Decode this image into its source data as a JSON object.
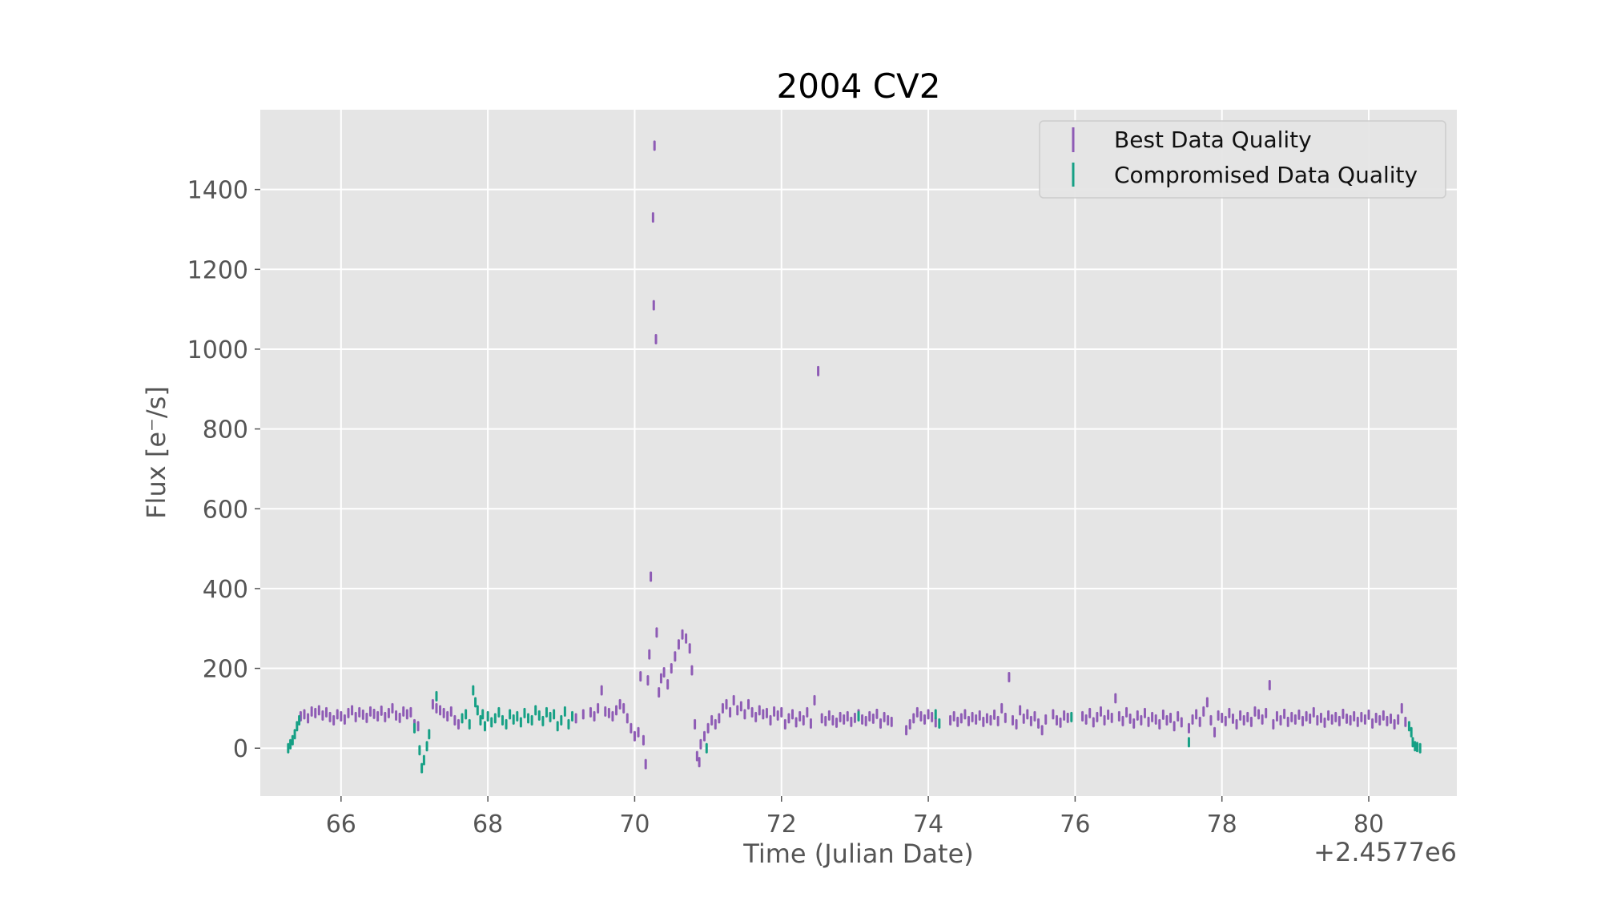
{
  "chart_data": {
    "type": "scatter",
    "title": "2004 CV2",
    "xlabel": "Time (Julian Date)",
    "ylabel": "Flux [e⁻/s]",
    "x_offset_label": "+2.4577e6",
    "xlim": [
      64.9,
      81.2
    ],
    "ylim": [
      -120,
      1600
    ],
    "x_ticks": [
      66,
      68,
      70,
      72,
      74,
      76,
      78,
      80
    ],
    "x_tick_labels": [
      "66",
      "68",
      "70",
      "72",
      "74",
      "76",
      "78",
      "80"
    ],
    "y_ticks": [
      0,
      200,
      400,
      600,
      800,
      1000,
      1200,
      1400
    ],
    "y_tick_labels": [
      "0",
      "200",
      "400",
      "600",
      "800",
      "1000",
      "1200",
      "1400"
    ],
    "grid": true,
    "legend_position": "top-right",
    "background": "#e5e5e5",
    "series": [
      {
        "name": "Best Data Quality",
        "color": "#8e5bb5",
        "points": [
          [
            65.45,
            80
          ],
          [
            65.5,
            85
          ],
          [
            65.55,
            75
          ],
          [
            65.6,
            92
          ],
          [
            65.65,
            88
          ],
          [
            65.7,
            95
          ],
          [
            65.75,
            82
          ],
          [
            65.8,
            90
          ],
          [
            65.85,
            78
          ],
          [
            65.9,
            70
          ],
          [
            65.95,
            85
          ],
          [
            66.0,
            80
          ],
          [
            66.05,
            72
          ],
          [
            66.1,
            88
          ],
          [
            66.15,
            95
          ],
          [
            66.2,
            78
          ],
          [
            66.25,
            90
          ],
          [
            66.3,
            84
          ],
          [
            66.35,
            76
          ],
          [
            66.4,
            92
          ],
          [
            66.45,
            86
          ],
          [
            66.5,
            80
          ],
          [
            66.55,
            94
          ],
          [
            66.6,
            78
          ],
          [
            66.65,
            88
          ],
          [
            66.7,
            100
          ],
          [
            66.75,
            82
          ],
          [
            66.8,
            76
          ],
          [
            66.85,
            92
          ],
          [
            66.9,
            85
          ],
          [
            66.95,
            90
          ],
          [
            67.0,
            60
          ],
          [
            67.05,
            55
          ],
          [
            67.25,
            110
          ],
          [
            67.3,
            100
          ],
          [
            67.35,
            95
          ],
          [
            67.4,
            88
          ],
          [
            67.45,
            80
          ],
          [
            67.5,
            92
          ],
          [
            67.55,
            70
          ],
          [
            67.6,
            60
          ],
          [
            69.2,
            75
          ],
          [
            69.3,
            85
          ],
          [
            69.4,
            90
          ],
          [
            69.45,
            80
          ],
          [
            69.5,
            100
          ],
          [
            69.55,
            145
          ],
          [
            69.6,
            92
          ],
          [
            69.65,
            88
          ],
          [
            69.7,
            80
          ],
          [
            69.75,
            95
          ],
          [
            69.8,
            110
          ],
          [
            69.85,
            100
          ],
          [
            69.9,
            75
          ],
          [
            69.95,
            50
          ],
          [
            70.0,
            30
          ],
          [
            70.05,
            40
          ],
          [
            70.08,
            180
          ],
          [
            70.12,
            20
          ],
          [
            70.15,
            -40
          ],
          [
            70.18,
            170
          ],
          [
            70.2,
            235
          ],
          [
            70.22,
            430
          ],
          [
            70.25,
            1330
          ],
          [
            70.26,
            1110
          ],
          [
            70.27,
            1510
          ],
          [
            70.29,
            1025
          ],
          [
            70.3,
            290
          ],
          [
            70.33,
            140
          ],
          [
            70.36,
            175
          ],
          [
            70.4,
            190
          ],
          [
            70.45,
            160
          ],
          [
            70.5,
            200
          ],
          [
            70.55,
            230
          ],
          [
            70.6,
            260
          ],
          [
            70.65,
            285
          ],
          [
            70.7,
            275
          ],
          [
            70.75,
            250
          ],
          [
            70.78,
            195
          ],
          [
            70.82,
            60
          ],
          [
            70.85,
            -20
          ],
          [
            70.88,
            -35
          ],
          [
            70.9,
            10
          ],
          [
            70.95,
            30
          ],
          [
            71.0,
            50
          ],
          [
            71.05,
            70
          ],
          [
            71.1,
            60
          ],
          [
            71.15,
            75
          ],
          [
            71.2,
            100
          ],
          [
            71.25,
            110
          ],
          [
            71.3,
            90
          ],
          [
            71.35,
            120
          ],
          [
            71.4,
            95
          ],
          [
            71.45,
            105
          ],
          [
            71.5,
            85
          ],
          [
            71.55,
            110
          ],
          [
            71.6,
            90
          ],
          [
            71.65,
            78
          ],
          [
            71.7,
            95
          ],
          [
            71.75,
            85
          ],
          [
            71.8,
            88
          ],
          [
            71.85,
            70
          ],
          [
            71.9,
            92
          ],
          [
            71.95,
            82
          ],
          [
            72.0,
            90
          ],
          [
            72.05,
            60
          ],
          [
            72.1,
            75
          ],
          [
            72.15,
            85
          ],
          [
            72.2,
            65
          ],
          [
            72.25,
            80
          ],
          [
            72.3,
            70
          ],
          [
            72.35,
            90
          ],
          [
            72.4,
            62
          ],
          [
            72.45,
            120
          ],
          [
            72.5,
            945
          ],
          [
            72.55,
            75
          ],
          [
            72.6,
            68
          ],
          [
            72.65,
            82
          ],
          [
            72.7,
            70
          ],
          [
            72.75,
            64
          ],
          [
            72.8,
            78
          ],
          [
            72.85,
            72
          ],
          [
            72.9,
            80
          ],
          [
            72.95,
            66
          ],
          [
            73.0,
            76
          ],
          [
            73.05,
            85
          ],
          [
            73.1,
            72
          ],
          [
            73.15,
            68
          ],
          [
            73.2,
            80
          ],
          [
            73.25,
            74
          ],
          [
            73.3,
            86
          ],
          [
            73.35,
            62
          ],
          [
            73.4,
            78
          ],
          [
            73.45,
            70
          ],
          [
            73.5,
            66
          ],
          [
            73.7,
            45
          ],
          [
            73.75,
            60
          ],
          [
            73.8,
            75
          ],
          [
            73.85,
            90
          ],
          [
            73.9,
            80
          ],
          [
            73.95,
            72
          ],
          [
            74.0,
            85
          ],
          [
            74.05,
            78
          ],
          [
            74.1,
            65
          ],
          [
            74.3,
            70
          ],
          [
            74.35,
            80
          ],
          [
            74.4,
            66
          ],
          [
            74.45,
            75
          ],
          [
            74.5,
            85
          ],
          [
            74.55,
            68
          ],
          [
            74.6,
            78
          ],
          [
            74.65,
            72
          ],
          [
            74.7,
            82
          ],
          [
            74.75,
            66
          ],
          [
            74.8,
            75
          ],
          [
            74.85,
            70
          ],
          [
            74.9,
            84
          ],
          [
            74.95,
            68
          ],
          [
            75.0,
            100
          ],
          [
            75.05,
            76
          ],
          [
            75.1,
            178
          ],
          [
            75.15,
            70
          ],
          [
            75.2,
            60
          ],
          [
            75.25,
            95
          ],
          [
            75.3,
            74
          ],
          [
            75.35,
            85
          ],
          [
            75.4,
            68
          ],
          [
            75.45,
            80
          ],
          [
            75.5,
            62
          ],
          [
            75.55,
            45
          ],
          [
            75.6,
            72
          ],
          [
            75.7,
            85
          ],
          [
            75.75,
            70
          ],
          [
            75.8,
            64
          ],
          [
            75.85,
            82
          ],
          [
            75.9,
            76
          ],
          [
            76.1,
            80
          ],
          [
            76.15,
            72
          ],
          [
            76.2,
            88
          ],
          [
            76.25,
            65
          ],
          [
            76.3,
            78
          ],
          [
            76.35,
            92
          ],
          [
            76.4,
            70
          ],
          [
            76.45,
            84
          ],
          [
            76.5,
            76
          ],
          [
            76.55,
            125
          ],
          [
            76.6,
            80
          ],
          [
            76.65,
            68
          ],
          [
            76.7,
            90
          ],
          [
            76.75,
            74
          ],
          [
            76.8,
            62
          ],
          [
            76.85,
            82
          ],
          [
            76.9,
            70
          ],
          [
            76.95,
            88
          ],
          [
            77.0,
            66
          ],
          [
            77.05,
            78
          ],
          [
            77.1,
            72
          ],
          [
            77.15,
            60
          ],
          [
            77.2,
            84
          ],
          [
            77.25,
            70
          ],
          [
            77.3,
            76
          ],
          [
            77.35,
            55
          ],
          [
            77.4,
            80
          ],
          [
            77.45,
            65
          ],
          [
            77.55,
            50
          ],
          [
            77.6,
            72
          ],
          [
            77.65,
            85
          ],
          [
            77.7,
            66
          ],
          [
            77.75,
            92
          ],
          [
            77.8,
            115
          ],
          [
            77.85,
            70
          ],
          [
            77.9,
            40
          ],
          [
            77.95,
            82
          ],
          [
            78.0,
            76
          ],
          [
            78.05,
            68
          ],
          [
            78.1,
            88
          ],
          [
            78.15,
            74
          ],
          [
            78.2,
            60
          ],
          [
            78.25,
            82
          ],
          [
            78.3,
            70
          ],
          [
            78.35,
            78
          ],
          [
            78.4,
            66
          ],
          [
            78.45,
            92
          ],
          [
            78.5,
            85
          ],
          [
            78.55,
            72
          ],
          [
            78.6,
            88
          ],
          [
            78.65,
            158
          ],
          [
            78.7,
            60
          ],
          [
            78.75,
            80
          ],
          [
            78.8,
            70
          ],
          [
            78.85,
            86
          ],
          [
            78.9,
            66
          ],
          [
            78.95,
            78
          ],
          [
            79.0,
            72
          ],
          [
            79.05,
            84
          ],
          [
            79.1,
            68
          ],
          [
            79.15,
            80
          ],
          [
            79.2,
            74
          ],
          [
            79.25,
            90
          ],
          [
            79.3,
            70
          ],
          [
            79.35,
            76
          ],
          [
            79.4,
            64
          ],
          [
            79.45,
            82
          ],
          [
            79.5,
            72
          ],
          [
            79.55,
            78
          ],
          [
            79.6,
            68
          ],
          [
            79.65,
            86
          ],
          [
            79.7,
            74
          ],
          [
            79.75,
            70
          ],
          [
            79.8,
            80
          ],
          [
            79.85,
            66
          ],
          [
            79.9,
            78
          ],
          [
            79.95,
            72
          ],
          [
            80.0,
            84
          ],
          [
            80.05,
            62
          ],
          [
            80.1,
            76
          ],
          [
            80.15,
            70
          ],
          [
            80.2,
            82
          ],
          [
            80.25,
            68
          ],
          [
            80.3,
            74
          ],
          [
            80.35,
            60
          ],
          [
            80.4,
            72
          ],
          [
            80.45,
            100
          ],
          [
            80.5,
            66
          ]
        ]
      },
      {
        "name": "Compromised Data Quality",
        "color": "#16a085",
        "points": [
          [
            65.28,
            0
          ],
          [
            65.31,
            10
          ],
          [
            65.34,
            20
          ],
          [
            65.37,
            35
          ],
          [
            65.4,
            55
          ],
          [
            65.43,
            70
          ],
          [
            67.0,
            50
          ],
          [
            67.07,
            -5
          ],
          [
            67.1,
            -50
          ],
          [
            67.13,
            -30
          ],
          [
            67.17,
            5
          ],
          [
            67.2,
            35
          ],
          [
            67.3,
            130
          ],
          [
            67.65,
            75
          ],
          [
            67.7,
            85
          ],
          [
            67.75,
            60
          ],
          [
            67.8,
            145
          ],
          [
            67.83,
            115
          ],
          [
            67.86,
            95
          ],
          [
            67.9,
            70
          ],
          [
            67.93,
            85
          ],
          [
            67.96,
            55
          ],
          [
            68.0,
            80
          ],
          [
            68.05,
            65
          ],
          [
            68.1,
            75
          ],
          [
            68.15,
            90
          ],
          [
            68.2,
            70
          ],
          [
            68.25,
            60
          ],
          [
            68.3,
            85
          ],
          [
            68.35,
            72
          ],
          [
            68.4,
            80
          ],
          [
            68.45,
            65
          ],
          [
            68.5,
            88
          ],
          [
            68.55,
            75
          ],
          [
            68.6,
            70
          ],
          [
            68.65,
            95
          ],
          [
            68.7,
            82
          ],
          [
            68.75,
            68
          ],
          [
            68.8,
            90
          ],
          [
            68.85,
            78
          ],
          [
            68.9,
            85
          ],
          [
            68.95,
            55
          ],
          [
            69.0,
            70
          ],
          [
            69.05,
            92
          ],
          [
            69.1,
            60
          ],
          [
            69.15,
            80
          ],
          [
            70.98,
            0
          ],
          [
            73.05,
            80
          ],
          [
            74.1,
            85
          ],
          [
            74.15,
            62
          ],
          [
            75.95,
            78
          ],
          [
            77.55,
            15
          ],
          [
            80.55,
            55
          ],
          [
            80.58,
            40
          ],
          [
            80.6,
            15
          ],
          [
            80.63,
            5
          ],
          [
            80.66,
            3
          ],
          [
            80.7,
            0
          ]
        ]
      }
    ]
  }
}
